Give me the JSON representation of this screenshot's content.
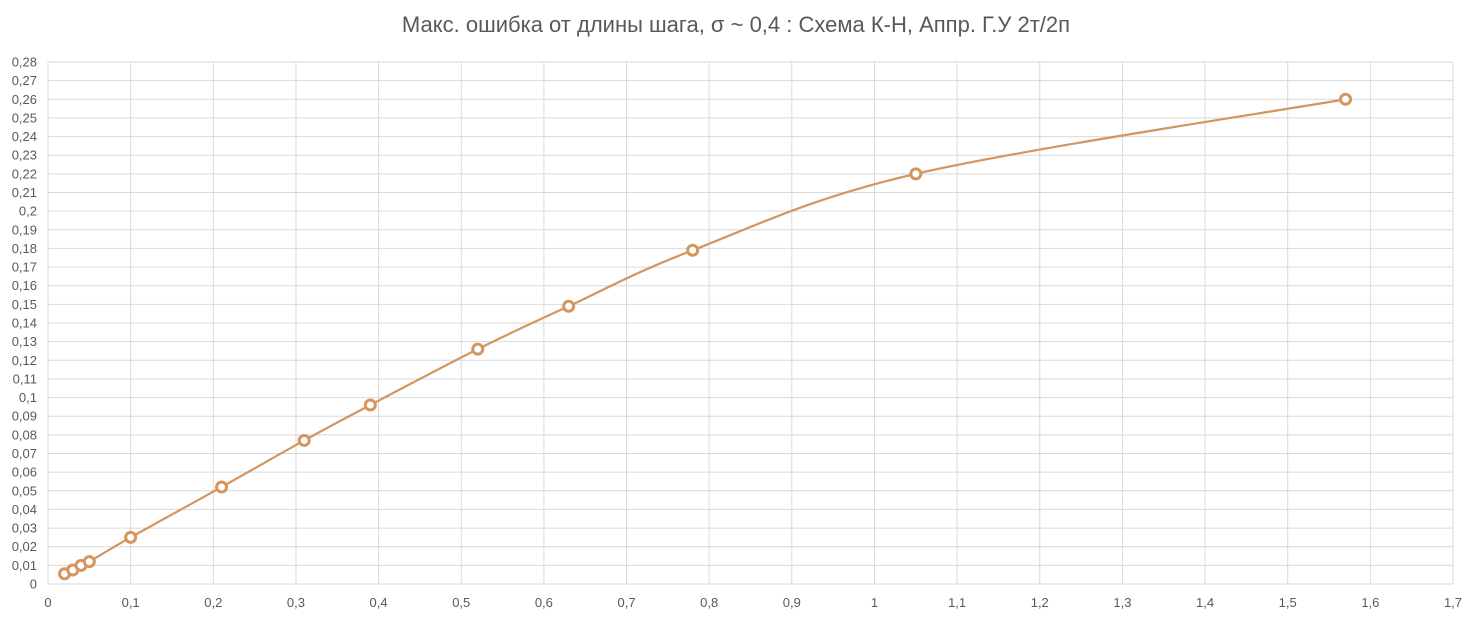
{
  "chart_data": {
    "type": "scatter",
    "title": "Макс. ошибка от длины шага, σ ~ 0,4 : Схема К-Н, Аппр. Г.У 2т/2п",
    "xlabel": "",
    "ylabel": "",
    "xlim": [
      0,
      1.7
    ],
    "ylim": [
      0,
      0.28
    ],
    "x_ticks": [
      "0",
      "0,1",
      "0,2",
      "0,3",
      "0,4",
      "0,5",
      "0,6",
      "0,7",
      "0,8",
      "0,9",
      "1",
      "1,1",
      "1,2",
      "1,3",
      "1,4",
      "1,5",
      "1,6",
      "1,7"
    ],
    "y_ticks": [
      "0",
      "0,01",
      "0,02",
      "0,03",
      "0,04",
      "0,05",
      "0,06",
      "0,07",
      "0,08",
      "0,09",
      "0,1",
      "0,11",
      "0,12",
      "0,13",
      "0,14",
      "0,15",
      "0,16",
      "0,17",
      "0,18",
      "0,19",
      "0,2",
      "0,21",
      "0,22",
      "0,23",
      "0,24",
      "0,25",
      "0,26",
      "0,27",
      "0,28"
    ],
    "grid": true,
    "legend": "none",
    "series": [
      {
        "smooth": true,
        "color": "#d4965f",
        "x": [
          0.02,
          0.03,
          0.04,
          0.05,
          0.1,
          0.21,
          0.31,
          0.39,
          0.52,
          0.63,
          0.78,
          1.05,
          1.57
        ],
        "y": [
          0.0055,
          0.0075,
          0.01,
          0.012,
          0.025,
          0.052,
          0.077,
          0.096,
          0.126,
          0.149,
          0.179,
          0.22,
          0.26
        ]
      }
    ]
  }
}
